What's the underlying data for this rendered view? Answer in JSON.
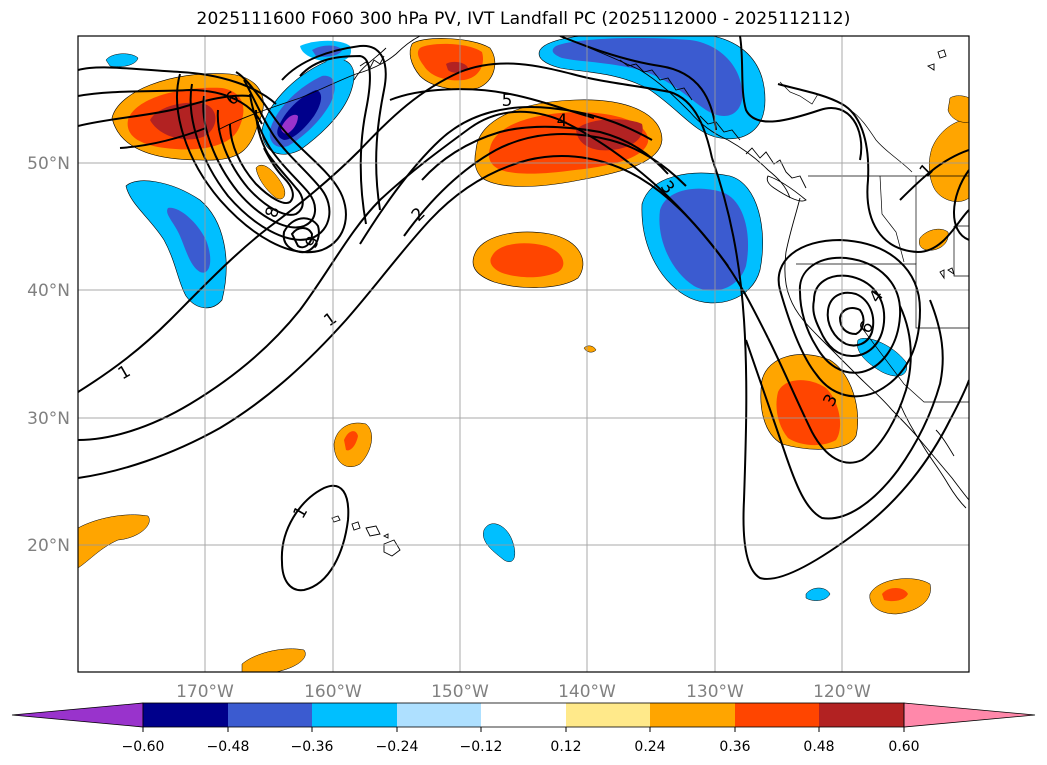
{
  "title": "2025111600 F060 300 hPa PV, IVT Landfall PC (2025112000 - 2025112112)",
  "map": {
    "lat_labels": [
      "50°N",
      "40°N",
      "30°N",
      "20°N"
    ],
    "lon_labels": [
      "170°W",
      "160°W",
      "150°W",
      "140°W",
      "130°W",
      "120°W"
    ],
    "contour_labels": [
      "1",
      "1",
      "1",
      "1",
      "2",
      "3",
      "3",
      "4",
      "4",
      "5",
      "6",
      "6",
      "8",
      "9"
    ]
  },
  "colorbar": {
    "ticks": [
      "−0.60",
      "−0.48",
      "−0.36",
      "−0.24",
      "−0.12",
      "0.12",
      "0.24",
      "0.36",
      "0.48",
      "0.60"
    ],
    "colors": {
      "extend_low": "#9933cc",
      "c1": "#00008b",
      "c2": "#3b5bd0",
      "c3": "#00bfff",
      "c4": "#aee0ff",
      "c5": "#ffffff",
      "c6": "#ffe98a",
      "c7": "#ffa500",
      "c8": "#ff4500",
      "c9": "#b22222",
      "extend_high": "#ff88aa"
    }
  }
}
